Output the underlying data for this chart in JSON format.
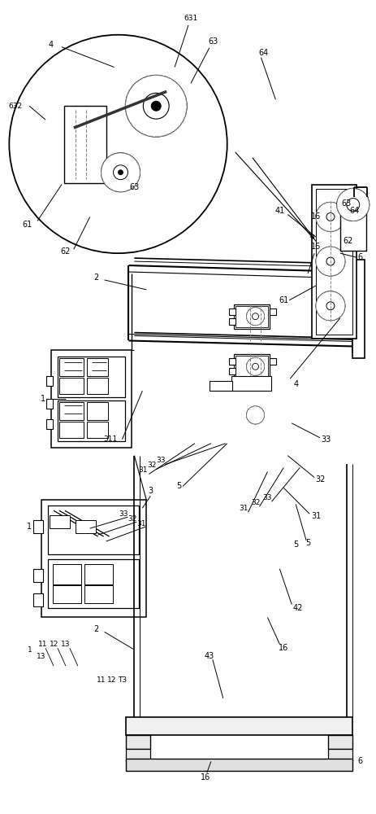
{
  "bg_color": "#ffffff",
  "lc": "#000000",
  "dc": "#888888",
  "lw": 1.0
}
